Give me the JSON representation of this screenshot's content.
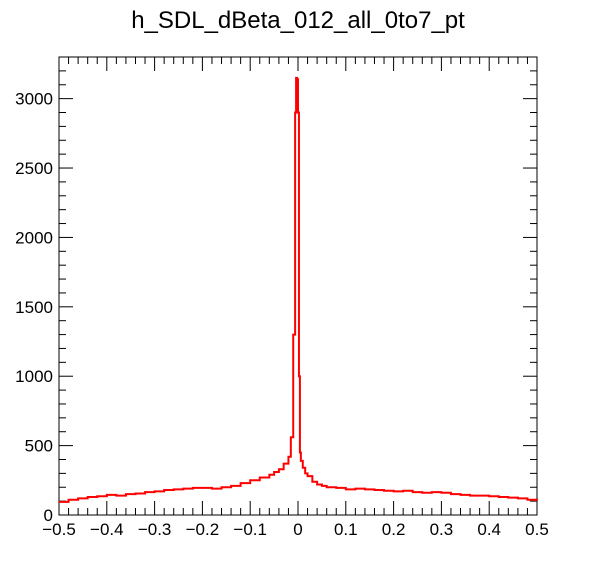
{
  "chart_data": {
    "type": "line",
    "title": "h_SDL_dBeta_012_all_0to7_pt",
    "xlabel": "",
    "ylabel": "",
    "xlim": [
      -0.5,
      0.5
    ],
    "ylim": [
      0,
      3300
    ],
    "grid": false,
    "legend": "none",
    "x_ticks": [
      -0.5,
      -0.4,
      -0.3,
      -0.2,
      -0.1,
      0,
      0.1,
      0.2,
      0.3,
      0.4,
      0.5
    ],
    "x_tick_labels": [
      "−0.5",
      "−0.4",
      "−0.3",
      "−0.2",
      "−0.1",
      "0",
      "0.1",
      "0.2",
      "0.3",
      "0.4",
      "0.5"
    ],
    "y_ticks": [
      0,
      500,
      1000,
      1500,
      2000,
      2500,
      3000
    ],
    "y_tick_labels": [
      "0",
      "500",
      "1000",
      "1500",
      "2000",
      "2500",
      "3000"
    ],
    "series": [
      {
        "color": "#ff0000",
        "x": [
          -0.5,
          -0.48,
          -0.46,
          -0.44,
          -0.42,
          -0.4,
          -0.38,
          -0.36,
          -0.34,
          -0.32,
          -0.3,
          -0.28,
          -0.26,
          -0.24,
          -0.22,
          -0.2,
          -0.18,
          -0.16,
          -0.14,
          -0.12,
          -0.1,
          -0.08,
          -0.06,
          -0.05,
          -0.04,
          -0.03,
          -0.02,
          -0.015,
          -0.01,
          -0.006,
          -0.004,
          -0.002,
          0,
          0.002,
          0.004,
          0.006,
          0.01,
          0.015,
          0.02,
          0.03,
          0.04,
          0.05,
          0.06,
          0.08,
          0.1,
          0.12,
          0.14,
          0.16,
          0.18,
          0.2,
          0.22,
          0.24,
          0.26,
          0.28,
          0.3,
          0.32,
          0.34,
          0.36,
          0.38,
          0.4,
          0.42,
          0.44,
          0.46,
          0.48,
          0.5
        ],
        "y": [
          95,
          110,
          120,
          130,
          135,
          145,
          140,
          150,
          155,
          165,
          170,
          180,
          185,
          190,
          195,
          195,
          190,
          200,
          210,
          230,
          250,
          270,
          290,
          310,
          330,
          370,
          420,
          560,
          1300,
          2900,
          3150,
          3140,
          2900,
          1000,
          450,
          390,
          340,
          300,
          280,
          240,
          220,
          210,
          200,
          195,
          185,
          190,
          185,
          180,
          175,
          170,
          175,
          165,
          160,
          165,
          160,
          150,
          145,
          140,
          140,
          135,
          130,
          125,
          120,
          110,
          105
        ]
      }
    ]
  }
}
